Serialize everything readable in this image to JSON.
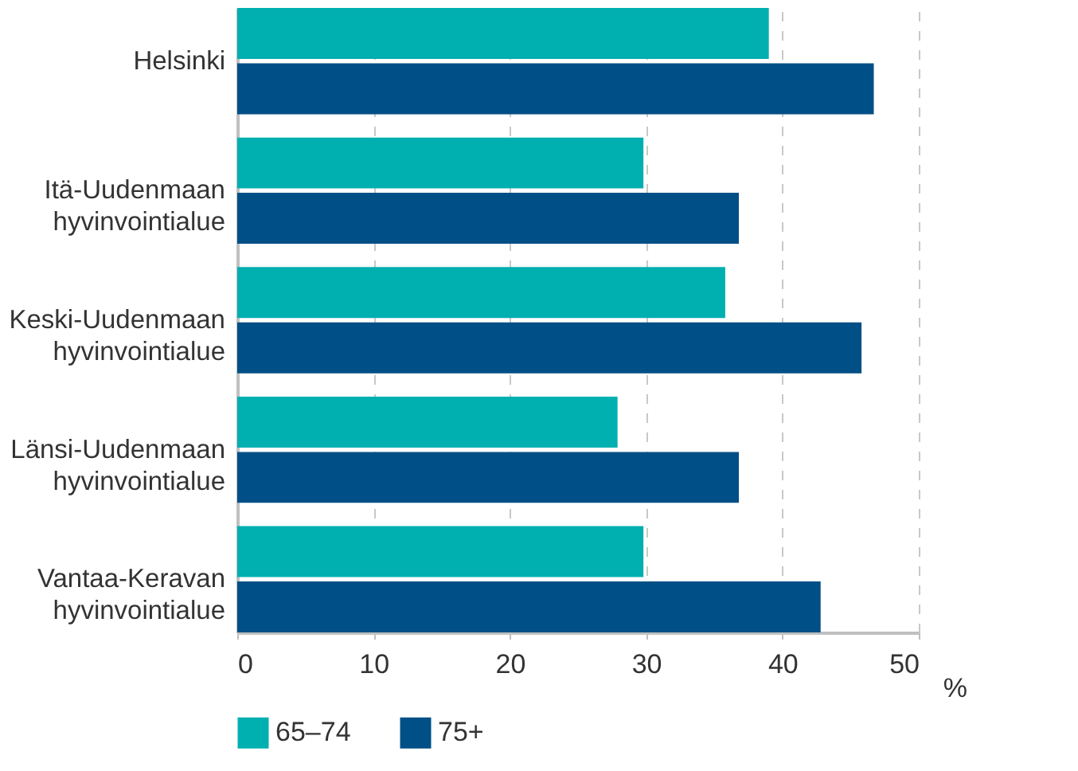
{
  "chart_data": {
    "type": "bar",
    "orientation": "horizontal",
    "xlabel": "%",
    "categories": [
      "Helsinki",
      "Itä-Uudenmaan hyvinvointialue",
      "Keski-Uudenmaan hyvinvointialue",
      "Länsi-Uudenmaan hyvinvointialue",
      "Vantaa-Keravan hyvinvointialue"
    ],
    "series": [
      {
        "name": "65–74",
        "color": "#00afb0",
        "values": [
          39.0,
          29.8,
          35.8,
          27.9,
          29.8
        ]
      },
      {
        "name": "75+",
        "color": "#004f86",
        "values": [
          46.7,
          36.8,
          45.8,
          36.8,
          42.8
        ]
      }
    ],
    "xlim": [
      0,
      50
    ],
    "xticks": [
      0,
      10,
      20,
      30,
      40,
      50
    ],
    "grid": "x",
    "legend": "bottom"
  }
}
